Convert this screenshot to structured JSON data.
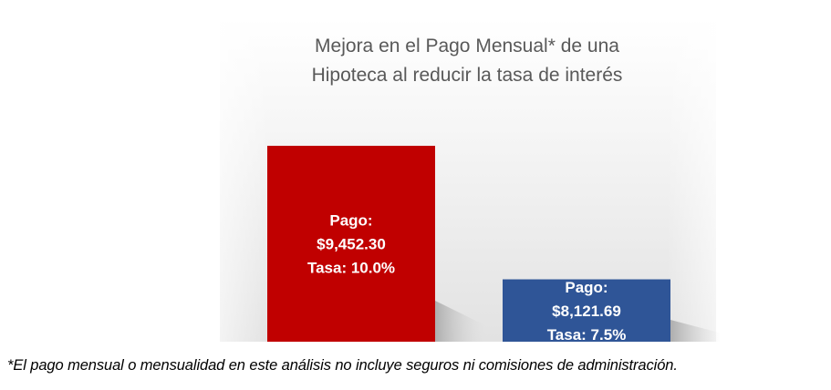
{
  "chart_data": {
    "type": "bar",
    "title_lines": [
      "Mejora en el Pago Mensual* de una",
      "Hipoteca al reducir la tasa de interés"
    ],
    "categories": [
      "Tasa: 10.0%",
      "Tasa: 7.5%"
    ],
    "values": [
      9452.3,
      8121.69
    ],
    "bar_labels": [
      [
        "Pago:",
        "$9,452.30",
        "Tasa: 10.0%"
      ],
      [
        "Pago:",
        "$8,121.69",
        "Tasa: 7.5%"
      ]
    ],
    "bar_colors": [
      "#c00000",
      "#2f5597"
    ],
    "ylim": [
      7500,
      10000
    ],
    "grid": false,
    "legend": "none"
  },
  "footnote": "*El pago mensual o mensualidad en este análisis no incluye seguros ni comisiones de administración."
}
